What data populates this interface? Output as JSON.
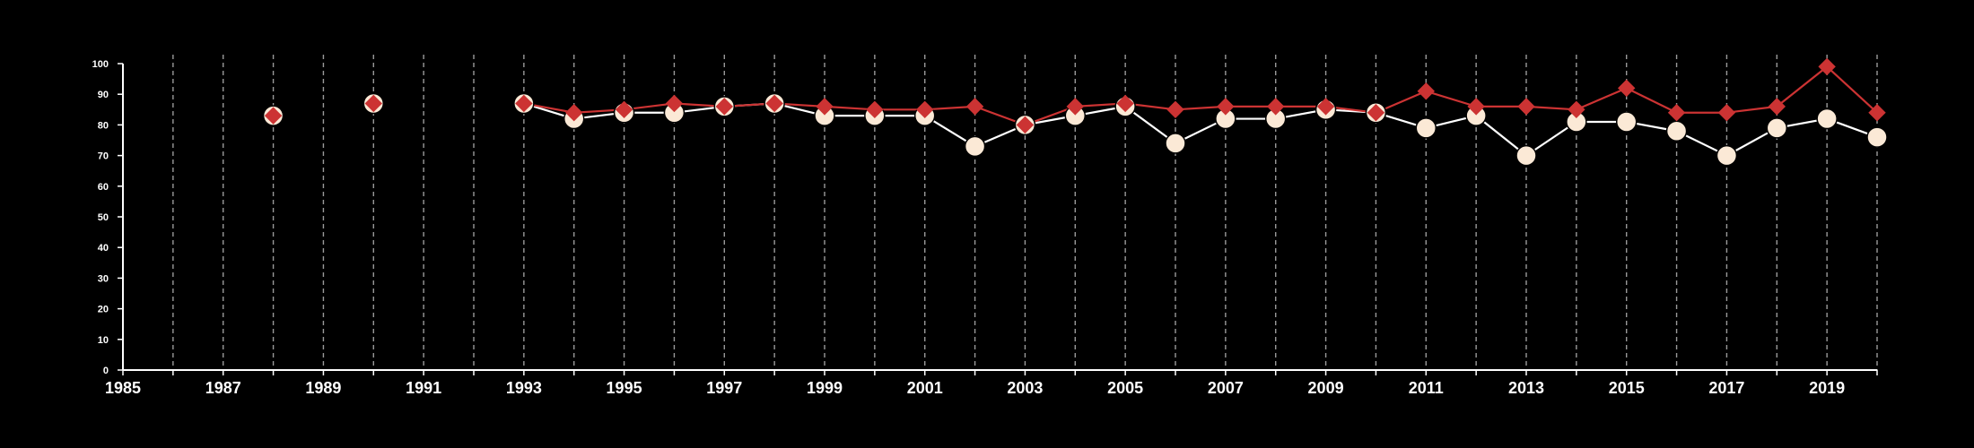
{
  "chart_data": {
    "type": "line",
    "title": "",
    "xlabel": "",
    "ylabel": "",
    "xlim": [
      1985,
      2020
    ],
    "ylim": [
      0,
      100
    ],
    "x_ticks": [
      "1985",
      "1987",
      "1989",
      "1991",
      "1993",
      "1995",
      "1997",
      "1999",
      "2001",
      "2003",
      "2005",
      "2007",
      "2009",
      "2011",
      "2013",
      "2015",
      "2017",
      "2019"
    ],
    "y_ticks": [
      "0",
      "10",
      "20",
      "30",
      "40",
      "50",
      "60",
      "70",
      "80",
      "90",
      "100"
    ],
    "grid": "vertical dashed lines at every year",
    "background": "#000000",
    "series": [
      {
        "marker": "circle",
        "color": "#ffffff",
        "fill": "#fbe9d6",
        "points": [
          [
            1988,
            83
          ],
          [
            1990,
            87
          ],
          [
            1993,
            87
          ],
          [
            1994,
            82
          ],
          [
            1995,
            84
          ],
          [
            1996,
            84
          ],
          [
            1997,
            86
          ],
          [
            1998,
            87
          ],
          [
            1999,
            83
          ],
          [
            2000,
            83
          ],
          [
            2001,
            83
          ],
          [
            2002,
            73
          ],
          [
            2003,
            80
          ],
          [
            2004,
            83
          ],
          [
            2005,
            86
          ],
          [
            2006,
            74
          ],
          [
            2007,
            82
          ],
          [
            2008,
            82
          ],
          [
            2009,
            85
          ],
          [
            2010,
            84
          ],
          [
            2011,
            79
          ],
          [
            2012,
            83
          ],
          [
            2013,
            70
          ],
          [
            2014,
            81
          ],
          [
            2015,
            81
          ],
          [
            2016,
            78
          ],
          [
            2017,
            70
          ],
          [
            2018,
            79
          ],
          [
            2019,
            82
          ],
          [
            2020,
            76
          ]
        ]
      },
      {
        "marker": "diamond",
        "color": "#cc3333",
        "fill": "#cc3333",
        "points": [
          [
            1988,
            83
          ],
          [
            1990,
            87
          ],
          [
            1993,
            87
          ],
          [
            1994,
            84
          ],
          [
            1995,
            85
          ],
          [
            1996,
            87
          ],
          [
            1997,
            86
          ],
          [
            1998,
            87
          ],
          [
            1999,
            86
          ],
          [
            2000,
            85
          ],
          [
            2001,
            85
          ],
          [
            2002,
            86
          ],
          [
            2003,
            80
          ],
          [
            2004,
            86
          ],
          [
            2005,
            87
          ],
          [
            2006,
            85
          ],
          [
            2007,
            86
          ],
          [
            2008,
            86
          ],
          [
            2009,
            86
          ],
          [
            2010,
            84
          ],
          [
            2011,
            91
          ],
          [
            2012,
            86
          ],
          [
            2013,
            86
          ],
          [
            2014,
            85
          ],
          [
            2015,
            92
          ],
          [
            2016,
            84
          ],
          [
            2017,
            84
          ],
          [
            2018,
            86
          ],
          [
            2019,
            99
          ],
          [
            2020,
            84
          ]
        ]
      }
    ]
  }
}
